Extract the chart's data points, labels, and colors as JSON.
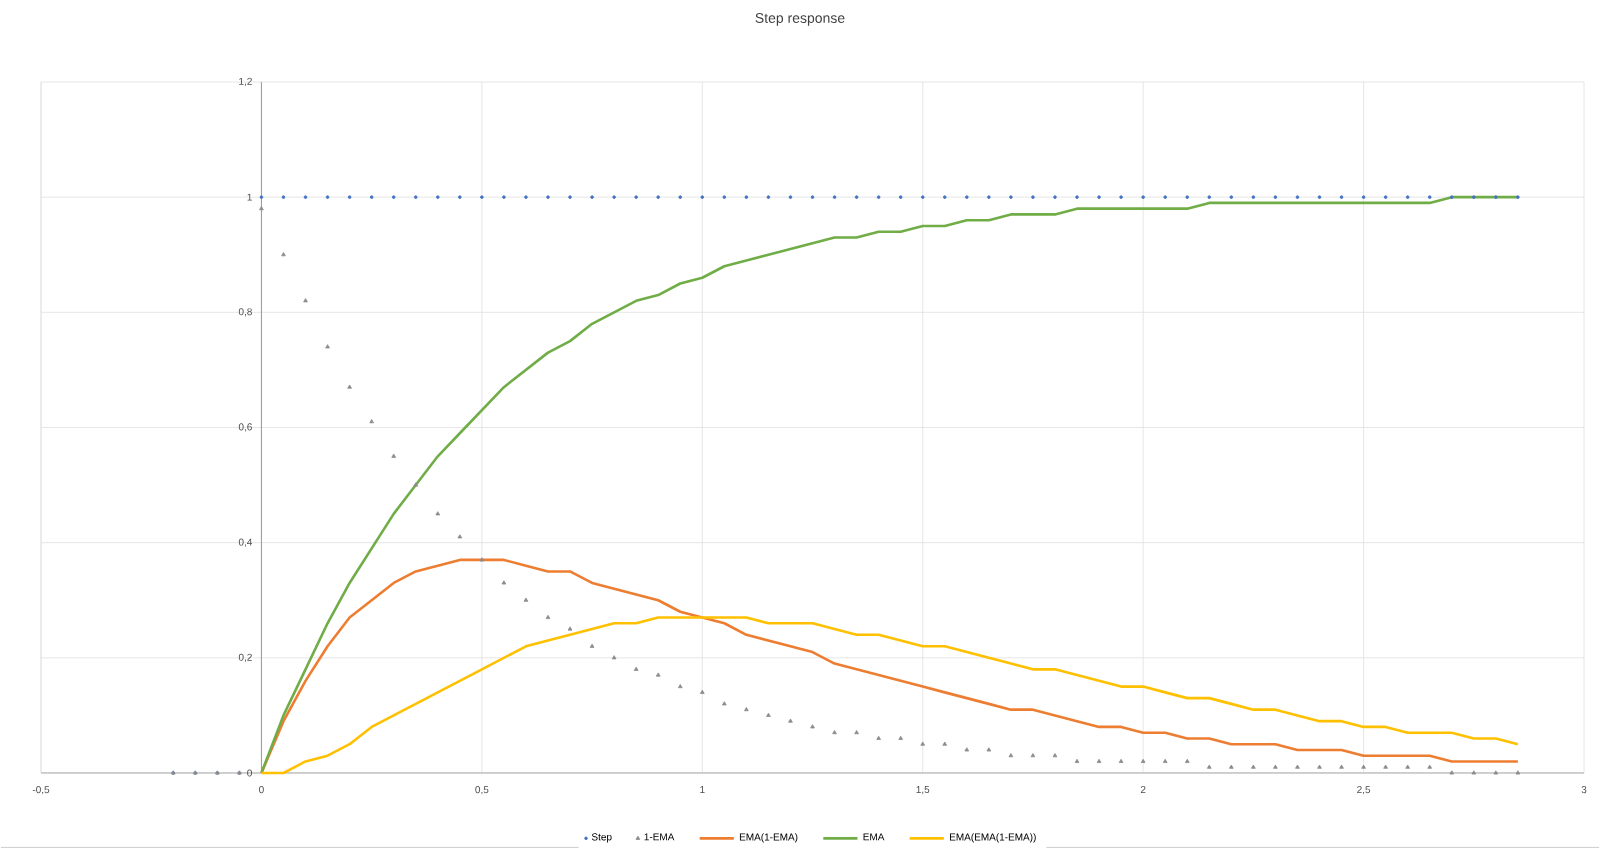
{
  "chart_data": {
    "type": "line",
    "title": "Step response",
    "x": [
      -0.2,
      -0.15,
      -0.1,
      -0.05,
      0,
      0.05,
      0.1,
      0.15,
      0.2,
      0.25,
      0.3,
      0.35,
      0.4,
      0.45,
      0.5,
      0.55,
      0.6,
      0.65,
      0.7,
      0.75,
      0.8,
      0.85,
      0.9,
      0.95,
      1,
      1.05,
      1.1,
      1.15,
      1.2,
      1.25,
      1.3,
      1.35,
      1.4,
      1.45,
      1.5,
      1.55,
      1.6,
      1.65,
      1.7,
      1.75,
      1.8,
      1.85,
      1.9,
      1.95,
      2,
      2.05,
      2.1,
      2.15,
      2.2,
      2.25,
      2.3,
      2.35,
      2.4,
      2.45,
      2.5,
      2.55,
      2.6,
      2.65,
      2.7,
      2.75,
      2.8,
      2.85
    ],
    "series": [
      {
        "name": "Step",
        "type": "scatter",
        "marker": "circle",
        "color": "#4472c4",
        "values": [
          0,
          0,
          0,
          0,
          1,
          1,
          1,
          1,
          1,
          1,
          1,
          1,
          1,
          1,
          1,
          1,
          1,
          1,
          1,
          1,
          1,
          1,
          1,
          1,
          1,
          1,
          1,
          1,
          1,
          1,
          1,
          1,
          1,
          1,
          1,
          1,
          1,
          1,
          1,
          1,
          1,
          1,
          1,
          1,
          1,
          1,
          1,
          1,
          1,
          1,
          1,
          1,
          1,
          1,
          1,
          1,
          1,
          1,
          1,
          1,
          1,
          1
        ]
      },
      {
        "name": "1-EMA",
        "type": "scatter",
        "marker": "triangle",
        "color": "#8c8c8c",
        "values": [
          0,
          0,
          0,
          0,
          0.98,
          0.9,
          0.82,
          0.74,
          0.67,
          0.61,
          0.55,
          0.5,
          0.45,
          0.41,
          0.37,
          0.33,
          0.3,
          0.27,
          0.25,
          0.22,
          0.2,
          0.18,
          0.17,
          0.15,
          0.14,
          0.12,
          0.11,
          0.1,
          0.09,
          0.08,
          0.07,
          0.07,
          0.06,
          0.06,
          0.05,
          0.05,
          0.04,
          0.04,
          0.03,
          0.03,
          0.03,
          0.02,
          0.02,
          0.02,
          0.02,
          0.02,
          0.02,
          0.01,
          0.01,
          0.01,
          0.01,
          0.01,
          0.01,
          0.01,
          0.01,
          0.01,
          0.01,
          0.01,
          0,
          0,
          0,
          0
        ]
      },
      {
        "name": "EMA(1-EMA)",
        "color": "#ed7d31",
        "values": [
          null,
          null,
          null,
          null,
          0,
          0.09,
          0.16,
          0.22,
          0.27,
          0.3,
          0.33,
          0.35,
          0.36,
          0.37,
          0.37,
          0.37,
          0.36,
          0.35,
          0.35,
          0.33,
          0.32,
          0.31,
          0.3,
          0.28,
          0.27,
          0.26,
          0.24,
          0.23,
          0.22,
          0.21,
          0.19,
          0.18,
          0.17,
          0.16,
          0.15,
          0.14,
          0.13,
          0.12,
          0.11,
          0.11,
          0.1,
          0.09,
          0.08,
          0.08,
          0.07,
          0.07,
          0.06,
          0.06,
          0.05,
          0.05,
          0.05,
          0.04,
          0.04,
          0.04,
          0.03,
          0.03,
          0.03,
          0.03,
          0.02,
          0.02,
          0.02,
          0.02
        ]
      },
      {
        "name": "EMA",
        "color": "#70ad47",
        "values": [
          null,
          null,
          null,
          null,
          0,
          0.1,
          0.18,
          0.26,
          0.33,
          0.39,
          0.45,
          0.5,
          0.55,
          0.59,
          0.63,
          0.67,
          0.7,
          0.73,
          0.75,
          0.78,
          0.8,
          0.82,
          0.83,
          0.85,
          0.86,
          0.88,
          0.89,
          0.9,
          0.91,
          0.92,
          0.93,
          0.93,
          0.94,
          0.94,
          0.95,
          0.95,
          0.96,
          0.96,
          0.97,
          0.97,
          0.97,
          0.98,
          0.98,
          0.98,
          0.98,
          0.98,
          0.98,
          0.99,
          0.99,
          0.99,
          0.99,
          0.99,
          0.99,
          0.99,
          0.99,
          0.99,
          0.99,
          0.99,
          1,
          1,
          1,
          1
        ]
      },
      {
        "name": "EMA(EMA(1-EMA))",
        "color": "#ffc000",
        "values": [
          null,
          null,
          null,
          null,
          0,
          0.0,
          0.02,
          0.03,
          0.05,
          0.08,
          0.1,
          0.12,
          0.14,
          0.16,
          0.18,
          0.2,
          0.22,
          0.23,
          0.24,
          0.25,
          0.26,
          0.26,
          0.27,
          0.27,
          0.27,
          0.27,
          0.27,
          0.26,
          0.26,
          0.26,
          0.25,
          0.24,
          0.24,
          0.23,
          0.22,
          0.22,
          0.21,
          0.2,
          0.19,
          0.18,
          0.18,
          0.17,
          0.16,
          0.15,
          0.15,
          0.14,
          0.13,
          0.13,
          0.12,
          0.11,
          0.11,
          0.1,
          0.09,
          0.09,
          0.08,
          0.08,
          0.07,
          0.07,
          0.07,
          0.06,
          0.06,
          0.05
        ]
      }
    ],
    "xlim": [
      -0.5,
      3
    ],
    "xticks": [
      {
        "value": -0.5,
        "label": "-0,5"
      },
      0,
      {
        "value": 0.5,
        "label": "0,5"
      },
      1,
      {
        "value": 1.5,
        "label": "1,5"
      },
      2,
      {
        "value": 2.5,
        "label": "2,5"
      },
      3
    ],
    "ylim": [
      0,
      1.2
    ],
    "yticks": [
      0,
      {
        "value": 0.2,
        "label": "0,2"
      },
      {
        "value": 0.4,
        "label": "0,4"
      },
      {
        "value": 0.6,
        "label": "0,6"
      },
      {
        "value": 0.8,
        "label": "0,8"
      },
      1,
      {
        "value": 1.2,
        "label": "1,2"
      }
    ],
    "grid": true,
    "legend": "bottom"
  }
}
